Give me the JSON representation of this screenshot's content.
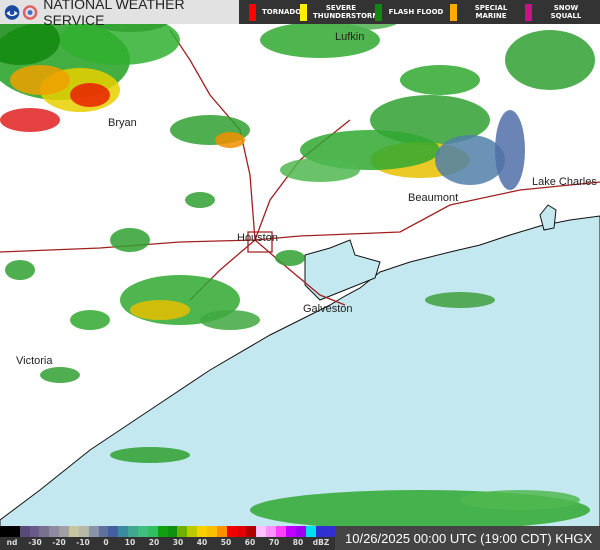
{
  "header": {
    "title": "NATIONAL WEATHER SERVICE",
    "warnings": [
      {
        "label": "TORNADO",
        "color": "#ff0000"
      },
      {
        "label": "SEVERE THUNDERSTORM",
        "color": "#ffee00"
      },
      {
        "label": "FLASH FLOOD",
        "color": "#118811"
      },
      {
        "label": "SPECIAL MARINE",
        "color": "#ffaa00"
      },
      {
        "label": "SNOW SQUALL",
        "color": "#cc1188"
      }
    ]
  },
  "map": {
    "cities": [
      {
        "name": "Lufkin"
      },
      {
        "name": "Bryan"
      },
      {
        "name": "Beaumont"
      },
      {
        "name": "Lake Charles"
      },
      {
        "name": "Houston"
      },
      {
        "name": "Galveston"
      },
      {
        "name": "Victoria"
      }
    ],
    "colors": {
      "gulf": "#c4e8ef",
      "land": "#ffffff",
      "roads": "#a02020"
    }
  },
  "scale": {
    "labels": [
      "nd",
      "-30",
      "-20",
      "-10",
      "0",
      "10",
      "20",
      "30",
      "40",
      "50",
      "60",
      "70",
      "80",
      "dBZ"
    ],
    "colors": [
      "#000",
      "#000",
      "#5a4a7a",
      "#6a5a8a",
      "#7a7090",
      "#908aa0",
      "#a0a0a0",
      "#c8c4a0",
      "#b8b8a8",
      "#8a94a8",
      "#6070a0",
      "#4060a0",
      "#3a8aa0",
      "#40a890",
      "#40c080",
      "#30c060",
      "#10a010",
      "#109010",
      "#70b000",
      "#c0c800",
      "#f8d000",
      "#f8c000",
      "#f89000",
      "#f00000",
      "#e00000",
      "#b00000",
      "#ffc0ff",
      "#ff90ff",
      "#ff40ff",
      "#c000ff",
      "#a000f0",
      "#00e0f0",
      "#3030d0",
      "#3030d0"
    ]
  },
  "timestamp": "10/26/2025 00:00 UTC (19:00 CDT) KHGX"
}
